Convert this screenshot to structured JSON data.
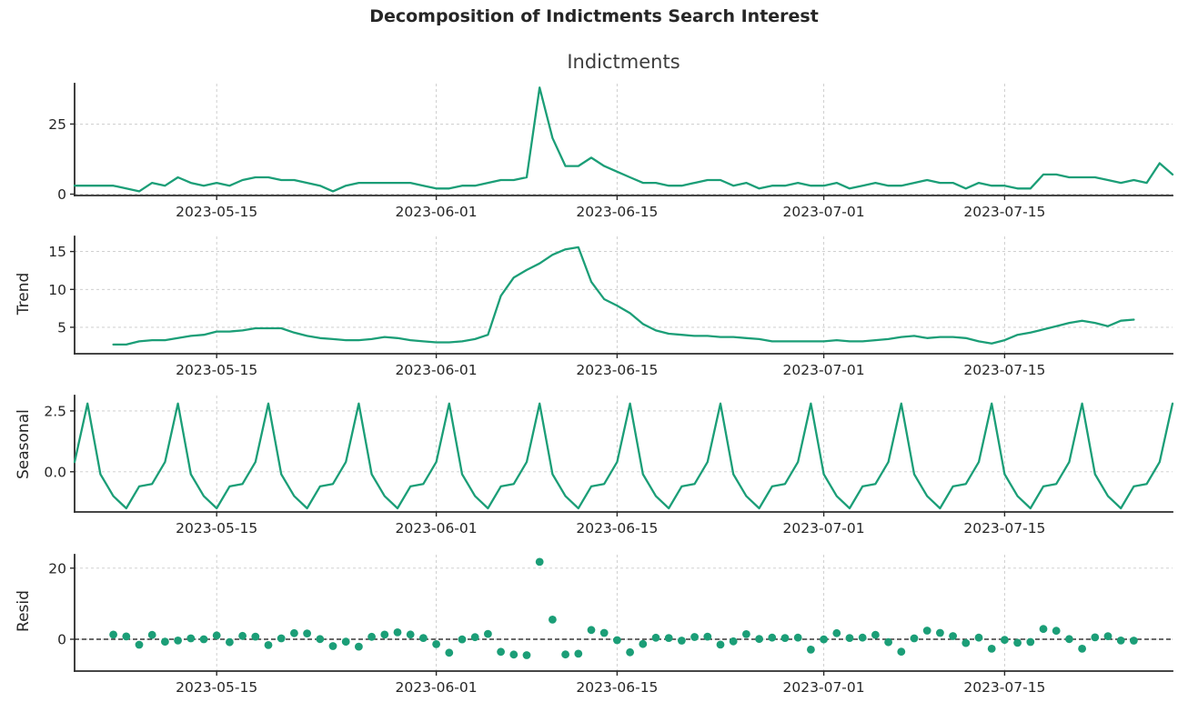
{
  "suptitle": "Decomposition of Indictments Search Interest",
  "chart_data": {
    "type": "line",
    "subtype": "seasonal-decomposition",
    "title": "Indictments",
    "line_color": "#1b9e77",
    "axis_color": "#2b2b2b",
    "grid_color": "#c9c9c9",
    "text_color": "#262626",
    "legend": "none",
    "grid": "both-dashed",
    "x_tick_labels": [
      "2023-05-15",
      "2023-06-01",
      "2023-06-15",
      "2023-07-01",
      "2023-07-15"
    ],
    "x_tick_positions": [
      11,
      28,
      42,
      58,
      72
    ],
    "seasonal_period_days": 7,
    "seasonal_pattern_by_weekday": {
      "Thu": 0.4,
      "Fri": 2.8,
      "Sat": -0.1,
      "Sun": -1.0,
      "Mon": -1.5,
      "Tue": -0.6,
      "Wed": -0.5
    },
    "dates": [
      "2023-05-04",
      "2023-05-05",
      "2023-05-06",
      "2023-05-07",
      "2023-05-08",
      "2023-05-09",
      "2023-05-10",
      "2023-05-11",
      "2023-05-12",
      "2023-05-13",
      "2023-05-14",
      "2023-05-15",
      "2023-05-16",
      "2023-05-17",
      "2023-05-18",
      "2023-05-19",
      "2023-05-20",
      "2023-05-21",
      "2023-05-22",
      "2023-05-23",
      "2023-05-24",
      "2023-05-25",
      "2023-05-26",
      "2023-05-27",
      "2023-05-28",
      "2023-05-29",
      "2023-05-30",
      "2023-05-31",
      "2023-06-01",
      "2023-06-02",
      "2023-06-03",
      "2023-06-04",
      "2023-06-05",
      "2023-06-06",
      "2023-06-07",
      "2023-06-08",
      "2023-06-09",
      "2023-06-10",
      "2023-06-11",
      "2023-06-12",
      "2023-06-13",
      "2023-06-14",
      "2023-06-15",
      "2023-06-16",
      "2023-06-17",
      "2023-06-18",
      "2023-06-19",
      "2023-06-20",
      "2023-06-21",
      "2023-06-22",
      "2023-06-23",
      "2023-06-24",
      "2023-06-25",
      "2023-06-26",
      "2023-06-27",
      "2023-06-28",
      "2023-06-29",
      "2023-06-30",
      "2023-07-01",
      "2023-07-02",
      "2023-07-03",
      "2023-07-04",
      "2023-07-05",
      "2023-07-06",
      "2023-07-07",
      "2023-07-08",
      "2023-07-09",
      "2023-07-10",
      "2023-07-11",
      "2023-07-12",
      "2023-07-13",
      "2023-07-14",
      "2023-07-15",
      "2023-07-16",
      "2023-07-17",
      "2023-07-18",
      "2023-07-19",
      "2023-07-20",
      "2023-07-21",
      "2023-07-22",
      "2023-07-23",
      "2023-07-24",
      "2023-07-25",
      "2023-07-26",
      "2023-07-27",
      "2023-07-28"
    ],
    "panels": [
      {
        "name": "observed",
        "ylabel": "",
        "style": "line",
        "yticks": [
          0,
          25
        ],
        "ytick_labels": [
          "0",
          "25"
        ],
        "ylim": [
          -0.5,
          39.4
        ],
        "zero_line": false,
        "values": [
          3,
          3,
          3,
          3,
          2,
          1,
          4,
          3,
          6,
          4,
          3,
          4,
          3,
          5,
          6,
          6,
          5,
          5,
          4,
          3,
          1,
          3,
          4,
          4,
          4,
          4,
          4,
          3,
          2,
          2,
          3,
          3,
          4,
          5,
          5,
          6,
          38,
          20,
          10,
          10,
          13,
          10,
          8,
          6,
          4,
          4,
          3,
          3,
          4,
          5,
          5,
          3,
          4,
          2,
          3,
          3,
          4,
          3,
          3,
          4,
          2,
          3,
          4,
          3,
          3,
          4,
          5,
          4,
          4,
          2,
          4,
          3,
          3,
          2,
          2,
          7,
          7,
          6,
          6,
          6,
          5,
          4,
          5,
          4,
          11,
          7
        ]
      },
      {
        "name": "trend",
        "ylabel": "Trend",
        "style": "line",
        "yticks": [
          5,
          10,
          15
        ],
        "ytick_labels": [
          "5",
          "10",
          "15"
        ],
        "ylim": [
          1.5,
          17.0
        ],
        "zero_line": false,
        "values": [
          null,
          null,
          null,
          2.71,
          2.71,
          3.14,
          3.29,
          3.29,
          3.57,
          3.86,
          4.0,
          4.43,
          4.43,
          4.57,
          4.86,
          4.86,
          4.86,
          4.29,
          3.86,
          3.57,
          3.43,
          3.29,
          3.29,
          3.43,
          3.71,
          3.57,
          3.29,
          3.14,
          3.0,
          3.0,
          3.14,
          3.43,
          4.0,
          9.14,
          11.57,
          12.57,
          13.43,
          14.57,
          15.29,
          15.57,
          11.0,
          8.71,
          7.86,
          6.86,
          5.43,
          4.57,
          4.14,
          4.0,
          3.86,
          3.86,
          3.71,
          3.71,
          3.57,
          3.43,
          3.14,
          3.14,
          3.14,
          3.14,
          3.14,
          3.29,
          3.14,
          3.14,
          3.29,
          3.43,
          3.71,
          3.86,
          3.57,
          3.71,
          3.71,
          3.57,
          3.14,
          2.86,
          3.29,
          4.0,
          4.29,
          4.71,
          5.14,
          5.57,
          5.86,
          5.57,
          5.14,
          5.86,
          6.0,
          null,
          null,
          null
        ]
      },
      {
        "name": "seasonal",
        "ylabel": "Seasonal",
        "style": "line",
        "yticks": [
          0.0,
          2.5
        ],
        "ytick_labels": [
          "0.0",
          "2.5"
        ],
        "ylim": [
          -1.65,
          3.13
        ],
        "zero_line": false,
        "values": [
          0.4,
          2.8,
          -0.1,
          -1.0,
          -1.5,
          -0.6,
          -0.5,
          0.4,
          2.8,
          -0.1,
          -1.0,
          -1.5,
          -0.6,
          -0.5,
          0.4,
          2.8,
          -0.1,
          -1.0,
          -1.5,
          -0.6,
          -0.5,
          0.4,
          2.8,
          -0.1,
          -1.0,
          -1.5,
          -0.6,
          -0.5,
          0.4,
          2.8,
          -0.1,
          -1.0,
          -1.5,
          -0.6,
          -0.5,
          0.4,
          2.8,
          -0.1,
          -1.0,
          -1.5,
          -0.6,
          -0.5,
          0.4,
          2.8,
          -0.1,
          -1.0,
          -1.5,
          -0.6,
          -0.5,
          0.4,
          2.8,
          -0.1,
          -1.0,
          -1.5,
          -0.6,
          -0.5,
          0.4,
          2.8,
          -0.1,
          -1.0,
          -1.5,
          -0.6,
          -0.5,
          0.4,
          2.8,
          -0.1,
          -1.0,
          -1.5,
          -0.6,
          -0.5,
          0.4,
          2.8,
          -0.1,
          -1.0,
          -1.5,
          -0.6,
          -0.5,
          0.4,
          2.8,
          -0.1,
          -1.0,
          -1.5,
          -0.6,
          -0.5,
          0.4,
          2.8
        ]
      },
      {
        "name": "resid",
        "ylabel": "Resid",
        "style": "scatter",
        "yticks": [
          0,
          20
        ],
        "ytick_labels": [
          "0",
          "20"
        ],
        "ylim": [
          -8.97,
          23.8
        ],
        "zero_line": true,
        "values": [
          null,
          null,
          null,
          1.29,
          0.79,
          -1.54,
          1.21,
          -0.69,
          -0.37,
          0.24,
          0.0,
          1.07,
          -0.83,
          0.93,
          0.74,
          -1.66,
          0.24,
          1.71,
          1.64,
          0.03,
          -1.93,
          -0.69,
          -2.09,
          0.67,
          1.29,
          1.93,
          1.31,
          0.36,
          -1.4,
          -3.8,
          -0.04,
          0.57,
          1.5,
          -3.54,
          -4.3,
          -4.5,
          21.77,
          5.53,
          -4.29,
          -4.07,
          2.6,
          1.79,
          -0.26,
          -3.66,
          -1.33,
          0.43,
          0.36,
          -0.4,
          0.64,
          0.74,
          -1.51,
          -0.61,
          1.43,
          0.07,
          0.46,
          0.36,
          0.46,
          -2.94,
          -0.04,
          1.71,
          0.36,
          0.46,
          1.21,
          -0.83,
          -3.51,
          0.24,
          2.43,
          1.79,
          0.89,
          -1.07,
          0.46,
          -2.66,
          -0.19,
          -1.0,
          -0.79,
          2.89,
          2.36,
          0.03,
          -2.66,
          0.53,
          0.86,
          -0.36,
          -0.4,
          null,
          null,
          null
        ]
      }
    ]
  }
}
